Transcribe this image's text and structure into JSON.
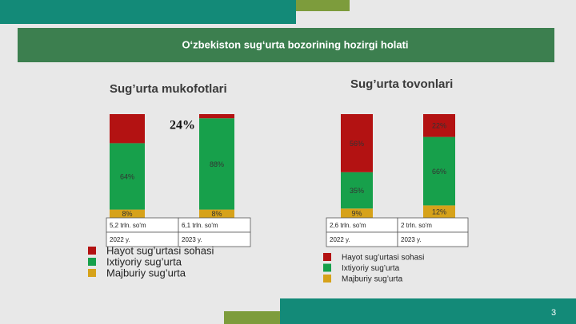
{
  "slide_title": "O‘zbekiston sug‘urta bozorining hozirgi holati",
  "page_number": "3",
  "chart_data": [
    {
      "type": "bar",
      "stacked": true,
      "title": "Sug’urta mukofotlari",
      "annotation": "24%",
      "categories": [
        "2022 y.",
        "2023 y."
      ],
      "totals": [
        "5,2 trln. so'm",
        "6,1 trln. so'm"
      ],
      "ylim": [
        0,
        100
      ],
      "series": [
        {
          "name": "Hayot sug’urtasi sohasi",
          "color": "#b31212",
          "values": [
            28,
            4
          ],
          "value_labels": [
            null,
            null
          ]
        },
        {
          "name": "Ixtiyoriy sug’urta",
          "color": "#17a04b",
          "values": [
            64,
            88
          ],
          "value_labels": [
            "64%",
            "88%"
          ]
        },
        {
          "name": "Majburiy sug’urta",
          "color": "#d6a21a",
          "values": [
            8,
            8
          ],
          "value_labels": [
            "8%",
            "8%"
          ]
        }
      ]
    },
    {
      "type": "bar",
      "stacked": true,
      "title": "Sug’urta tovonlari",
      "categories": [
        "2022 y.",
        "2023 y."
      ],
      "totals": [
        "2,6 trln. so'm",
        "2 trln. so'm"
      ],
      "ylim": [
        0,
        100
      ],
      "series": [
        {
          "name": "Hayot sug’urtasi sohasi",
          "color": "#b31212",
          "values": [
            56,
            22
          ],
          "value_labels": [
            "56%",
            "22%"
          ]
        },
        {
          "name": "Ixtiyoriy sug’urta",
          "color": "#17a04b",
          "values": [
            35,
            66
          ],
          "value_labels": [
            "35%",
            "66%"
          ]
        },
        {
          "name": "Majburiy sug’urta",
          "color": "#d6a21a",
          "values": [
            9,
            12
          ],
          "value_labels": [
            "9%",
            "12%"
          ]
        }
      ]
    }
  ]
}
